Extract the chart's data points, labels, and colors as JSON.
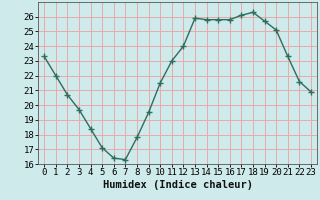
{
  "x": [
    0,
    1,
    2,
    3,
    4,
    5,
    6,
    7,
    8,
    9,
    10,
    11,
    12,
    13,
    14,
    15,
    16,
    17,
    18,
    19,
    20,
    21,
    22,
    23
  ],
  "y": [
    23.3,
    22.0,
    20.7,
    19.7,
    18.4,
    17.1,
    16.4,
    16.3,
    17.8,
    19.5,
    21.5,
    23.0,
    24.0,
    25.9,
    25.8,
    25.8,
    25.8,
    26.1,
    26.3,
    25.7,
    25.1,
    23.3,
    21.6,
    20.9
  ],
  "line_color": "#2d6e5e",
  "marker": "+",
  "markersize": 4,
  "markeredgewidth": 1.0,
  "bg_color": "#ceeaea",
  "grid_color": "#e8aaaa",
  "xlabel": "Humidex (Indice chaleur)",
  "ylim": [
    16,
    27
  ],
  "xlim": [
    -0.5,
    23.5
  ],
  "yticks": [
    16,
    17,
    18,
    19,
    20,
    21,
    22,
    23,
    24,
    25,
    26
  ],
  "xticks": [
    0,
    1,
    2,
    3,
    4,
    5,
    6,
    7,
    8,
    9,
    10,
    11,
    12,
    13,
    14,
    15,
    16,
    17,
    18,
    19,
    20,
    21,
    22,
    23
  ],
  "xtick_labels": [
    "0",
    "1",
    "2",
    "3",
    "4",
    "5",
    "6",
    "7",
    "8",
    "9",
    "10",
    "11",
    "12",
    "13",
    "14",
    "15",
    "16",
    "17",
    "18",
    "19",
    "20",
    "21",
    "22",
    "23"
  ],
  "linewidth": 1.0,
  "tick_fontsize": 6.5,
  "label_fontsize": 7.5
}
